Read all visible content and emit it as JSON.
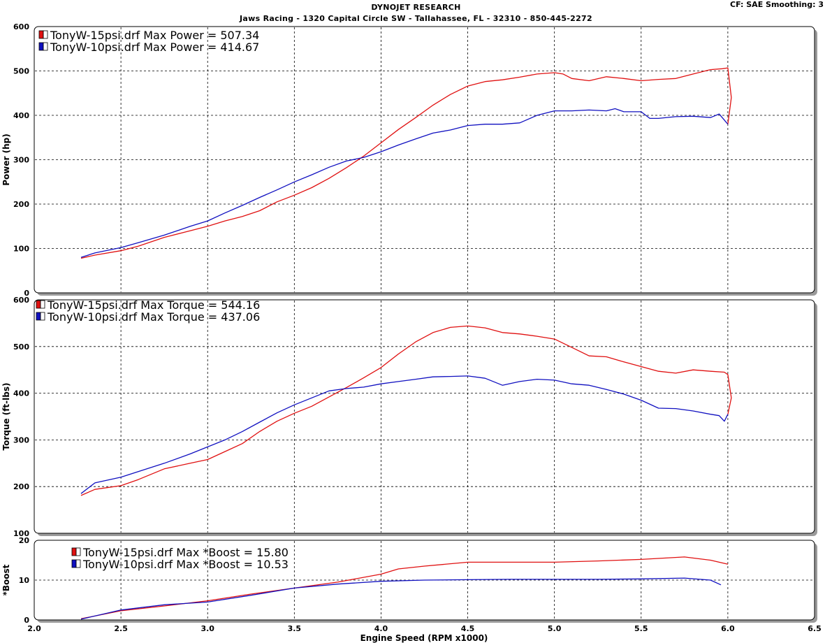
{
  "header": {
    "title": "DYNOJET RESEARCH",
    "subtitle": "Jaws Racing - 1320 Capital Circle SW - Tallahassee, FL - 32310 - 850-445-2272",
    "settings": "CF: SAE  Smoothing: 3"
  },
  "colors": {
    "run_15psi": "#e01010",
    "run_10psi": "#1010c0"
  },
  "chart_data": [
    {
      "type": "line",
      "ylabel": "Power (hp)",
      "xlim": [
        2.0,
        6.5
      ],
      "ylim": [
        0,
        600
      ],
      "yticks": [
        "0",
        "100",
        "200",
        "300",
        "400",
        "500",
        "600"
      ],
      "grid": true,
      "legend_placement": "top-left",
      "series": [
        {
          "name": "TonyW-15psi.drf Max Power = 507.34",
          "x": [
            2.27,
            2.35,
            2.5,
            2.6,
            2.75,
            2.9,
            3.0,
            3.1,
            3.2,
            3.3,
            3.4,
            3.5,
            3.6,
            3.7,
            3.8,
            3.9,
            4.0,
            4.1,
            4.2,
            4.3,
            4.4,
            4.5,
            4.6,
            4.7,
            4.8,
            4.9,
            5.0,
            5.05,
            5.1,
            5.2,
            5.3,
            5.4,
            5.5,
            5.6,
            5.7,
            5.8,
            5.9,
            5.97,
            6.0,
            6.02,
            6.0
          ],
          "y": [
            78,
            85,
            95,
            105,
            125,
            140,
            150,
            162,
            172,
            185,
            205,
            220,
            237,
            258,
            282,
            308,
            338,
            368,
            395,
            423,
            447,
            466,
            476,
            480,
            486,
            493,
            496,
            493,
            483,
            478,
            487,
            483,
            478,
            481,
            483,
            493,
            503,
            505,
            507,
            440,
            380
          ]
        },
        {
          "name": "TonyW-10psi.drf Max Power = 414.67",
          "x": [
            2.27,
            2.35,
            2.5,
            2.6,
            2.75,
            2.9,
            3.0,
            3.1,
            3.2,
            3.3,
            3.4,
            3.5,
            3.6,
            3.7,
            3.8,
            3.9,
            4.0,
            4.1,
            4.2,
            4.3,
            4.4,
            4.5,
            4.6,
            4.7,
            4.8,
            4.9,
            5.0,
            5.1,
            5.2,
            5.3,
            5.35,
            5.4,
            5.5,
            5.55,
            5.6,
            5.7,
            5.8,
            5.9,
            5.95,
            6.0
          ],
          "y": [
            80,
            90,
            102,
            113,
            130,
            150,
            162,
            180,
            197,
            215,
            232,
            250,
            266,
            283,
            297,
            305,
            318,
            333,
            347,
            360,
            367,
            377,
            380,
            380,
            383,
            400,
            410,
            410,
            412,
            410,
            415,
            408,
            408,
            393,
            393,
            397,
            398,
            395,
            403,
            380
          ]
        }
      ]
    },
    {
      "type": "line",
      "ylabel": "Torque (ft-lbs)",
      "xlim": [
        2.0,
        6.5
      ],
      "ylim": [
        100,
        600
      ],
      "yticks": [
        "100",
        "200",
        "300",
        "400",
        "500",
        "600"
      ],
      "grid": true,
      "legend_placement": "top-left",
      "series": [
        {
          "name": "TonyW-15psi.drf Max Torque = 544.16",
          "x": [
            2.27,
            2.35,
            2.5,
            2.6,
            2.75,
            2.9,
            3.0,
            3.1,
            3.2,
            3.3,
            3.4,
            3.5,
            3.6,
            3.7,
            3.8,
            3.9,
            4.0,
            4.1,
            4.2,
            4.3,
            4.4,
            4.5,
            4.6,
            4.7,
            4.8,
            4.9,
            5.0,
            5.1,
            5.2,
            5.3,
            5.4,
            5.5,
            5.6,
            5.7,
            5.8,
            5.9,
            5.98,
            6.0,
            6.02,
            6.0
          ],
          "y": [
            181,
            194,
            202,
            215,
            238,
            250,
            258,
            275,
            292,
            318,
            340,
            357,
            372,
            392,
            412,
            433,
            455,
            484,
            510,
            530,
            541,
            544,
            540,
            530,
            527,
            522,
            516,
            498,
            480,
            478,
            467,
            457,
            447,
            443,
            450,
            447,
            445,
            440,
            390,
            355
          ]
        },
        {
          "name": "TonyW-10psi.drf Max Torque = 437.06",
          "x": [
            2.27,
            2.35,
            2.5,
            2.6,
            2.75,
            2.9,
            3.0,
            3.1,
            3.2,
            3.3,
            3.4,
            3.5,
            3.6,
            3.7,
            3.8,
            3.9,
            4.0,
            4.1,
            4.2,
            4.3,
            4.4,
            4.5,
            4.6,
            4.7,
            4.8,
            4.9,
            5.0,
            5.1,
            5.2,
            5.3,
            5.4,
            5.5,
            5.6,
            5.7,
            5.8,
            5.9,
            5.95,
            5.98,
            6.0
          ],
          "y": [
            185,
            208,
            220,
            232,
            250,
            270,
            285,
            300,
            318,
            338,
            358,
            375,
            390,
            405,
            410,
            413,
            420,
            425,
            430,
            435,
            436,
            437,
            432,
            417,
            425,
            430,
            428,
            420,
            417,
            408,
            398,
            385,
            368,
            367,
            362,
            355,
            352,
            340,
            355
          ]
        }
      ]
    },
    {
      "type": "line",
      "xlabel": "Engine Speed (RPM x1000)",
      "ylabel": "*Boost",
      "xlim": [
        2.0,
        6.5
      ],
      "ylim": [
        0,
        20
      ],
      "xticks": [
        "2.0",
        "2.5",
        "3.0",
        "3.5",
        "4.0",
        "4.5",
        "5.0",
        "5.5",
        "6.0",
        "6.5"
      ],
      "yticks": [
        "0",
        "10",
        "20"
      ],
      "grid": true,
      "legend_placement": "top-left",
      "series": [
        {
          "name": "TonyW-15psi.drf Max *Boost = 15.80",
          "x": [
            2.27,
            2.5,
            2.75,
            3.0,
            3.25,
            3.5,
            3.75,
            4.0,
            4.1,
            4.25,
            4.5,
            4.75,
            5.0,
            5.25,
            5.5,
            5.75,
            5.9,
            6.0
          ],
          "y": [
            0.3,
            2.3,
            3.5,
            4.8,
            6.5,
            8.0,
            9.5,
            11.5,
            12.8,
            13.5,
            14.5,
            14.5,
            14.5,
            14.8,
            15.2,
            15.8,
            15.0,
            14.0
          ]
        },
        {
          "name": "TonyW-10psi.drf Max *Boost = 10.53",
          "x": [
            2.27,
            2.5,
            2.75,
            3.0,
            3.25,
            3.5,
            3.75,
            4.0,
            4.25,
            4.5,
            4.75,
            5.0,
            5.25,
            5.5,
            5.75,
            5.9,
            5.96
          ],
          "y": [
            0.2,
            2.5,
            3.8,
            4.5,
            6.2,
            8.0,
            9.0,
            9.7,
            10.0,
            10.1,
            10.2,
            10.2,
            10.2,
            10.3,
            10.5,
            10.0,
            8.8
          ]
        }
      ]
    }
  ]
}
